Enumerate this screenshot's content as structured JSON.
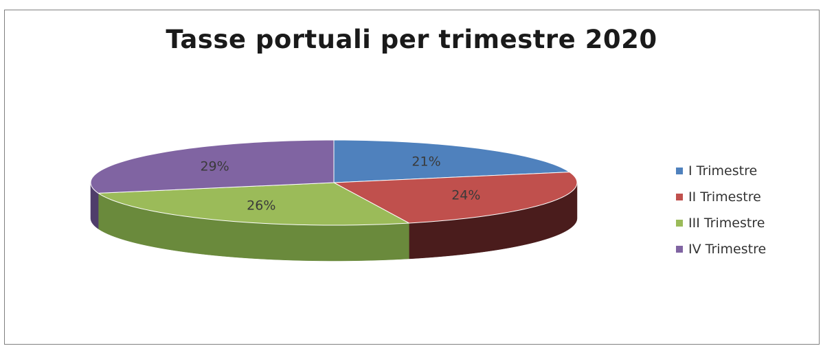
{
  "chart_data": {
    "type": "pie",
    "title": "Tasse portuali per trimestre 2020",
    "categories": [
      "I Trimestre",
      "II Trimestre",
      "III Trimestre",
      "IV Trimestre"
    ],
    "values": [
      21,
      24,
      26,
      29
    ],
    "labels": [
      "21%",
      "24%",
      "26%",
      "29%"
    ],
    "colors": [
      "#4f81bd",
      "#c0504d",
      "#9bbb59",
      "#8064a2"
    ],
    "side_colors": [
      "#2c4d75",
      "#4a1c1c",
      "#6a8a3c",
      "#4f3d6b"
    ],
    "legend_position": "right",
    "style": "3d"
  }
}
